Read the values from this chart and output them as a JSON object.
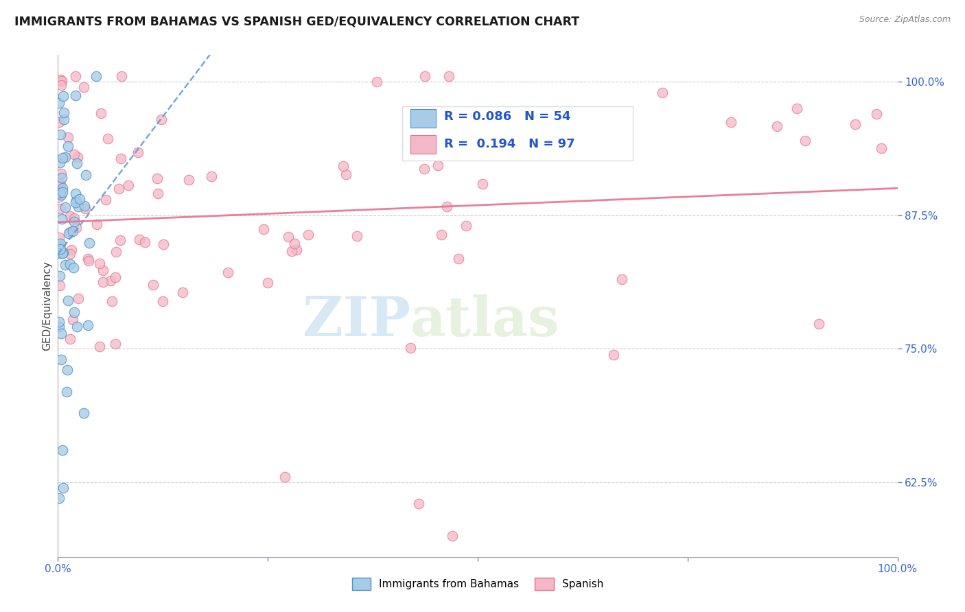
{
  "title": "IMMIGRANTS FROM BAHAMAS VS SPANISH GED/EQUIVALENCY CORRELATION CHART",
  "source": "Source: ZipAtlas.com",
  "ylabel": "GED/Equivalency",
  "ytick_labels": [
    "100.0%",
    "87.5%",
    "75.0%",
    "62.5%"
  ],
  "ytick_values": [
    1.0,
    0.875,
    0.75,
    0.625
  ],
  "legend_label1": "Immigrants from Bahamas",
  "legend_label2": "Spanish",
  "R1": 0.086,
  "N1": 54,
  "R2": 0.194,
  "N2": 97,
  "color_blue": "#a8cce8",
  "color_pink": "#f4b8c8",
  "color_blue_dark": "#4a90c4",
  "color_pink_dark": "#e8708a",
  "color_blue_line": "#5b9bd5",
  "color_pink_line": "#e87090",
  "watermark_zip": "ZIP",
  "watermark_atlas": "atlas",
  "xlim": [
    0.0,
    1.0
  ],
  "ylim": [
    0.555,
    1.025
  ]
}
